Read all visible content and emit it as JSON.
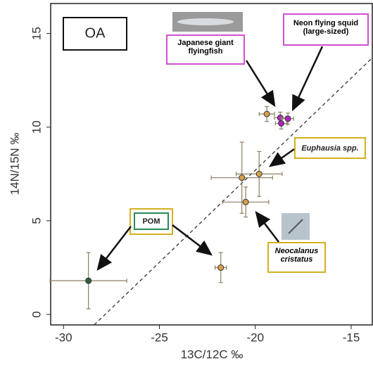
{
  "chart_data": {
    "type": "scatter",
    "x_label": "13C/12C ‰",
    "y_label": "14N/15N ‰",
    "xlim": [
      -30.67,
      -13.9
    ],
    "ylim": [
      -0.56,
      16.6
    ],
    "xticks": [
      -30,
      -25,
      -20,
      -15
    ],
    "yticks": [
      0,
      5,
      10,
      15
    ],
    "points": [
      {
        "x": -28.7,
        "y": 1.8,
        "xerr": 2.0,
        "yerr": 1.5,
        "color": "#2f5e3c"
      },
      {
        "x": -21.8,
        "y": 2.5,
        "xerr": 0.3,
        "yerr": 0.8,
        "color": "#d9a04a"
      },
      {
        "x": -20.5,
        "y": 6.0,
        "xerr": 1.2,
        "yerr": 0.8,
        "color": "#d9a04a"
      },
      {
        "x": -20.7,
        "y": 7.3,
        "xerr": 1.6,
        "yerr": 1.9,
        "color": "#d9a04a"
      },
      {
        "x": -19.8,
        "y": 7.5,
        "xerr": 1.2,
        "yerr": 1.2,
        "color": "#d9a04a"
      },
      {
        "x": -19.4,
        "y": 10.7,
        "xerr": 0.4,
        "yerr": 0.4,
        "color": "#d9a04a"
      },
      {
        "x": -18.7,
        "y": 10.5,
        "xerr": 0.3,
        "yerr": 0.3,
        "color": "#b41fc8"
      },
      {
        "x": -18.65,
        "y": 10.2,
        "xerr": 0.3,
        "yerr": 0.3,
        "color": "#b41fc8"
      },
      {
        "x": -18.3,
        "y": 10.45,
        "xerr": 0.3,
        "yerr": 0.3,
        "color": "#b41fc8"
      }
    ],
    "reference_line": {
      "x": [
        -28.4,
        -13.9
      ],
      "y": [
        -0.56,
        13.7
      ]
    },
    "annotations": {
      "panel": "OA",
      "flyingfish": "Japanese giant flyingfish",
      "squid": "Neon flying squid (large-sized)",
      "euphausia": "Euphausia spp.",
      "neocalanus": "Neocalanus cristatus",
      "pom": "POM"
    }
  }
}
